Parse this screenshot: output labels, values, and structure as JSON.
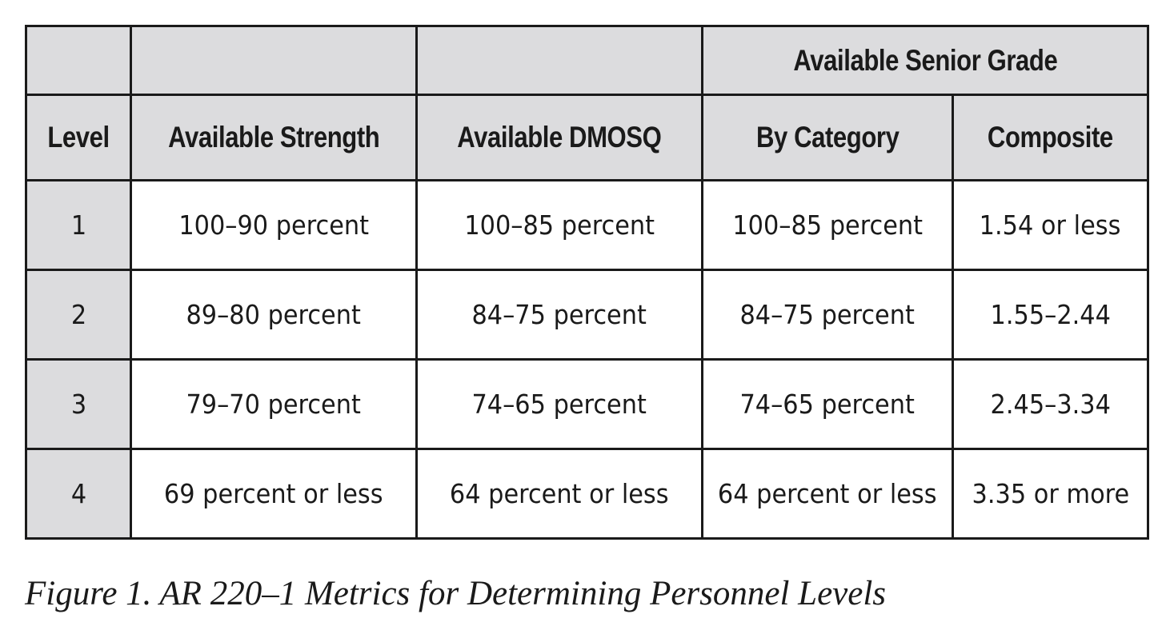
{
  "table": {
    "group_header": "Available Senior Grade",
    "columns": [
      "Level",
      "Available Strength",
      "Available DMOSQ",
      "By Category",
      "Composite"
    ],
    "rows": [
      [
        "1",
        "100–90 percent",
        "100–85 percent",
        "100–85 percent",
        "1.54 or less"
      ],
      [
        "2",
        "89–80 percent",
        "84–75 percent",
        "84–75 percent",
        "1.55–2.44"
      ],
      [
        "3",
        "79–70 percent",
        "74–65 percent",
        "74–65 percent",
        "2.45–3.34"
      ],
      [
        "4",
        "69 percent or less",
        "64 percent or less",
        "64 percent or less",
        "3.35 or more"
      ]
    ]
  },
  "caption": "Figure 1. AR 220–1 Metrics for Determining Personnel Levels"
}
